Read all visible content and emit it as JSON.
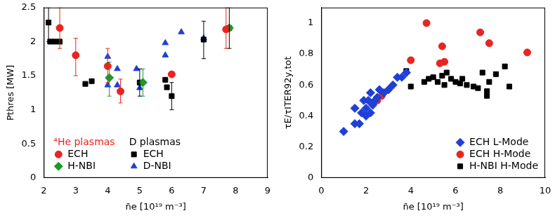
{
  "chart_data": [
    {
      "type": "scatter",
      "x_label": "n̄e [10¹⁹ m⁻³]",
      "y_label": "Pthres [MW]",
      "xlim": [
        2,
        9
      ],
      "xticks": [
        2,
        3,
        4,
        5,
        6,
        7,
        8,
        9
      ],
      "ylim": [
        0,
        2.5
      ],
      "yticks": [
        0,
        0.5,
        1,
        1.5,
        2,
        2.5
      ],
      "grid": false,
      "legend": "lower left",
      "groups": [
        {
          "name": "⁴He plasmas",
          "color": "#e8251f",
          "series": [
            {
              "name": "ECH",
              "color": "#e8251f",
              "marker": "circle",
              "x": [
                2.5,
                3.0,
                4.0,
                4.4,
                6.0,
                7.7
              ],
              "values": [
                2.2,
                1.8,
                1.64,
                1.27,
                1.52,
                2.18
              ],
              "errors": [
                [
                  1.9,
                  2.5
                ],
                [
                  1.5,
                  2.05
                ],
                [
                  1.4,
                  1.9
                ],
                [
                  1.1,
                  1.45
                ],
                null,
                [
                  1.9,
                  2.5
                ]
              ]
            },
            {
              "name": "H-NBI",
              "color": "#1a9a2a",
              "marker": "diamond",
              "x": [
                4.05,
                5.1,
                7.8
              ],
              "values": [
                1.47,
                1.4,
                2.2
              ],
              "errors": [
                [
                  1.2,
                  1.7
                ],
                [
                  1.2,
                  1.6
                ],
                null
              ]
            }
          ]
        },
        {
          "name": "D plasmas",
          "color": "#000000",
          "series": [
            {
              "name": "ECH",
              "color": "#000000",
              "marker": "square",
              "x": [
                2.15,
                2.2,
                2.35,
                2.5,
                3.3,
                3.5,
                5.0,
                5.8,
                5.85,
                6.0,
                7.0,
                7.8
              ],
              "values": [
                2.28,
                2.0,
                2.0,
                2.0,
                1.38,
                1.42,
                1.4,
                1.44,
                1.33,
                1.2,
                2.03,
                2.2
              ],
              "errors": [
                [
                  2.0,
                  2.5
                ],
                null,
                null,
                null,
                null,
                null,
                [
                  1.2,
                  1.6
                ],
                null,
                null,
                [
                  1.0,
                  1.4
                ],
                [
                  1.75,
                  2.3
                ],
                [
                  1.9,
                  2.5
                ]
              ]
            },
            {
              "name": "D-NBI",
              "color": "#1f3fd6",
              "marker": "triangle",
              "x": [
                4.0,
                4.0,
                4.0,
                4.3,
                4.3,
                4.9,
                5.0,
                5.8,
                5.8,
                6.3,
                7.0
              ],
              "values": [
                1.78,
                1.65,
                1.36,
                1.6,
                1.36,
                1.6,
                1.32,
                1.98,
                1.8,
                2.14,
                2.05
              ],
              "errors": [
                null,
                null,
                null,
                null,
                null,
                null,
                null,
                null,
                null,
                null,
                null
              ]
            }
          ]
        }
      ]
    },
    {
      "type": "scatter",
      "x_label": "n̄e [10¹⁹ m⁻³]",
      "y_label": "τE/τITER92y,tot",
      "xlim": [
        0,
        10
      ],
      "xticks": [
        0,
        2,
        4,
        6,
        8,
        10
      ],
      "ylim": [
        0,
        1.1
      ],
      "yticks": [
        0,
        0.2,
        0.4,
        0.6,
        0.8,
        1
      ],
      "grid": false,
      "legend": "lower right",
      "groups": [
        {
          "name": null,
          "color": null,
          "series": [
            {
              "name": "ECH L-Mode",
              "color": "#1f3fd6",
              "marker": "diamond",
              "x": [
                1.0,
                1.5,
                1.5,
                1.7,
                1.8,
                1.9,
                2.0,
                2.0,
                2.1,
                2.2,
                2.2,
                2.3,
                2.4,
                2.5,
                2.6,
                2.8,
                3.0,
                3.2,
                3.4,
                3.6,
                3.8
              ],
              "values": [
                0.3,
                0.35,
                0.45,
                0.35,
                0.42,
                0.5,
                0.4,
                0.45,
                0.5,
                0.42,
                0.55,
                0.47,
                0.5,
                0.52,
                0.57,
                0.55,
                0.57,
                0.6,
                0.65,
                0.65,
                0.68
              ],
              "errors": null
            },
            {
              "name": "ECH H-Mode",
              "color": "#e8251f",
              "marker": "circle",
              "x": [
                2.3,
                2.5,
                2.7,
                4.0,
                4.7,
                5.3,
                5.4,
                5.5,
                7.1,
                7.5,
                9.2
              ],
              "values": [
                0.48,
                0.5,
                0.53,
                0.76,
                1.0,
                0.74,
                0.85,
                0.75,
                0.94,
                0.87,
                0.81
              ],
              "errors": null
            },
            {
              "name": "H-NBI H-Mode",
              "color": "#000000",
              "marker": "square",
              "x": [
                3.8,
                4.0,
                4.6,
                4.8,
                5.0,
                5.2,
                5.4,
                5.5,
                5.6,
                5.8,
                6.0,
                6.2,
                6.3,
                6.5,
                6.8,
                7.0,
                7.2,
                7.4,
                7.4,
                7.5,
                7.8,
                8.2,
                8.4
              ],
              "values": [
                0.69,
                0.59,
                0.62,
                0.64,
                0.65,
                0.62,
                0.66,
                0.6,
                0.68,
                0.64,
                0.62,
                0.61,
                0.64,
                0.6,
                0.59,
                0.58,
                0.68,
                0.53,
                0.56,
                0.62,
                0.67,
                0.72,
                0.59
              ],
              "errors": null
            }
          ]
        }
      ]
    }
  ]
}
